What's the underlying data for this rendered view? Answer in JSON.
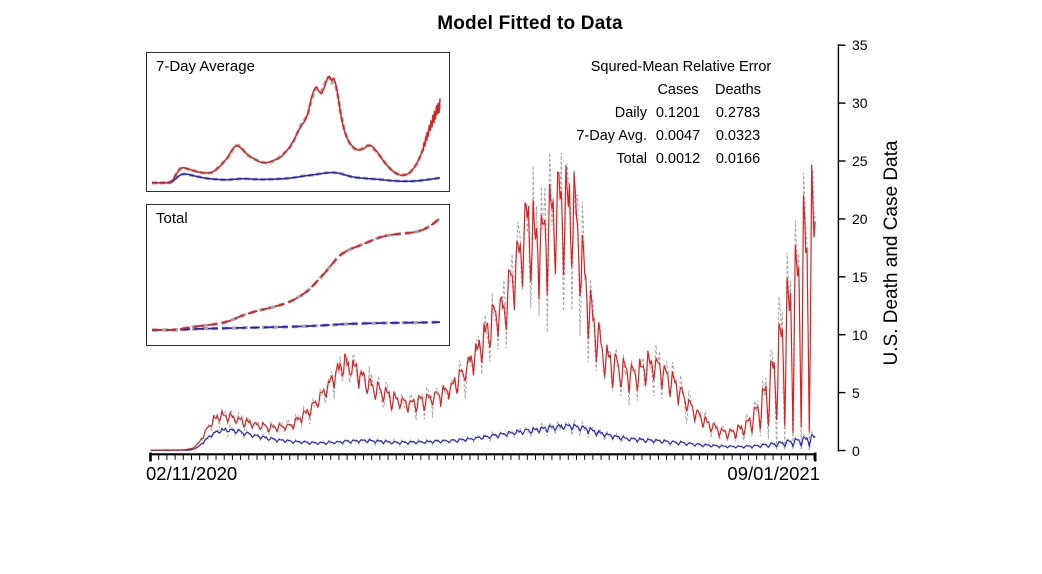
{
  "title": "Model Fitted to Data",
  "error_table": {
    "title": "Squred-Mean Relative Error",
    "col_headers": [
      "Cases",
      "Deaths"
    ],
    "rows": [
      {
        "label": "Daily",
        "cases": "0.1201",
        "deaths": "0.2783"
      },
      {
        "label": "7-Day Avg.",
        "cases": "0.0047",
        "deaths": "0.0323"
      },
      {
        "label": "Total",
        "cases": "0.0012",
        "deaths": "0.0166"
      }
    ]
  },
  "axes": {
    "x_tick_labels": [
      "02/11/2020",
      "09/01/2021"
    ],
    "y_axis_label": "U.S. Death and Case Data",
    "y_ticks": [
      0,
      5,
      10,
      15,
      20,
      25,
      30,
      35
    ]
  },
  "insets": {
    "seven_day_label": "7-Day Average",
    "total_label": "Total"
  },
  "colors": {
    "cases": "#dd1f1f",
    "deaths": "#2424cc",
    "data": "#a6a6a6",
    "axis": "#000000"
  },
  "chart_data": [
    {
      "id": "main-daily",
      "type": "line",
      "title": "Model Fitted to Data",
      "ylabel": "U.S. Death and Case Data",
      "ylim": [
        0,
        35
      ],
      "x_start": "02/11/2020",
      "x_end": "09/01/2021",
      "days": 568,
      "x_tick_interval_days": 7,
      "weekly_oscillation": {
        "period_days": 7,
        "phase": 2.5,
        "w1": 0.72,
        "w2": 0.42,
        "w2_phase": 0.9
      },
      "series": [
        {
          "name": "cases-data",
          "role": "data",
          "color": "data",
          "dashed": true,
          "base": "cases-model",
          "amp_mult": 1.42,
          "jitter": 0.13,
          "seed": 7,
          "spikes": [
            [
              338,
              0.15
            ],
            [
              544,
              0.1
            ],
            [
              558,
              0.12
            ]
          ]
        },
        {
          "name": "deaths-data",
          "role": "data",
          "color": "data",
          "dashed": true,
          "base": "deaths-model",
          "amp_mult": 1.5,
          "jitter": 0.16,
          "seed": 19,
          "spikes": []
        },
        {
          "name": "deaths-model",
          "role": "model",
          "color": "deaths",
          "dashed": false,
          "jitter": 0.04,
          "seed": 23,
          "trend": [
            [
              0,
              0.01
            ],
            [
              34,
              0.03
            ],
            [
              40,
              0.25
            ],
            [
              46,
              0.8
            ],
            [
              52,
              1.35
            ],
            [
              58,
              1.7
            ],
            [
              64,
              1.8
            ],
            [
              72,
              1.7
            ],
            [
              80,
              1.5
            ],
            [
              90,
              1.25
            ],
            [
              100,
              1.05
            ],
            [
              110,
              0.9
            ],
            [
              120,
              0.78
            ],
            [
              130,
              0.7
            ],
            [
              140,
              0.65
            ],
            [
              150,
              0.66
            ],
            [
              160,
              0.72
            ],
            [
              170,
              0.8
            ],
            [
              180,
              0.85
            ],
            [
              190,
              0.82
            ],
            [
              200,
              0.76
            ],
            [
              210,
              0.7
            ],
            [
              220,
              0.7
            ],
            [
              230,
              0.73
            ],
            [
              240,
              0.76
            ],
            [
              250,
              0.8
            ],
            [
              260,
              0.86
            ],
            [
              270,
              0.95
            ],
            [
              280,
              1.08
            ],
            [
              290,
              1.22
            ],
            [
              300,
              1.38
            ],
            [
              310,
              1.52
            ],
            [
              320,
              1.66
            ],
            [
              330,
              1.8
            ],
            [
              340,
              1.95
            ],
            [
              350,
              2.05
            ],
            [
              358,
              2.1
            ],
            [
              366,
              2.0
            ],
            [
              374,
              1.8
            ],
            [
              382,
              1.55
            ],
            [
              392,
              1.3
            ],
            [
              402,
              1.1
            ],
            [
              412,
              0.98
            ],
            [
              422,
              0.9
            ],
            [
              432,
              0.84
            ],
            [
              442,
              0.76
            ],
            [
              452,
              0.66
            ],
            [
              462,
              0.56
            ],
            [
              472,
              0.47
            ],
            [
              482,
              0.4
            ],
            [
              492,
              0.35
            ],
            [
              502,
              0.33
            ],
            [
              512,
              0.36
            ],
            [
              522,
              0.42
            ],
            [
              532,
              0.52
            ],
            [
              542,
              0.64
            ],
            [
              552,
              0.78
            ],
            [
              560,
              0.9
            ],
            [
              568,
              1.05
            ]
          ],
          "osc_amp": [
            [
              0,
              0.08
            ],
            [
              60,
              0.1
            ],
            [
              120,
              0.16
            ],
            [
              200,
              0.18
            ],
            [
              280,
              0.14
            ],
            [
              340,
              0.12
            ],
            [
              400,
              0.16
            ],
            [
              460,
              0.22
            ],
            [
              510,
              0.3
            ],
            [
              545,
              0.42
            ],
            [
              568,
              0.55
            ]
          ]
        },
        {
          "name": "cases-model",
          "role": "model",
          "color": "cases",
          "dashed": false,
          "jitter": 0.05,
          "seed": 11,
          "trend": [
            [
              0,
              0.03
            ],
            [
              28,
              0.05
            ],
            [
              36,
              0.18
            ],
            [
              42,
              0.7
            ],
            [
              48,
              1.8
            ],
            [
              55,
              2.8
            ],
            [
              62,
              3.05
            ],
            [
              70,
              2.85
            ],
            [
              80,
              2.5
            ],
            [
              90,
              2.2
            ],
            [
              100,
              2.0
            ],
            [
              110,
              2.0
            ],
            [
              118,
              2.1
            ],
            [
              126,
              2.6
            ],
            [
              134,
              3.3
            ],
            [
              142,
              4.2
            ],
            [
              150,
              5.2
            ],
            [
              158,
              6.6
            ],
            [
              164,
              7.3
            ],
            [
              170,
              7.35
            ],
            [
              176,
              6.9
            ],
            [
              184,
              6.0
            ],
            [
              192,
              5.4
            ],
            [
              200,
              4.9
            ],
            [
              208,
              4.4
            ],
            [
              216,
              4.05
            ],
            [
              224,
              4.0
            ],
            [
              232,
              4.2
            ],
            [
              240,
              4.5
            ],
            [
              248,
              4.8
            ],
            [
              256,
              5.3
            ],
            [
              264,
              6.2
            ],
            [
              272,
              7.2
            ],
            [
              280,
              8.6
            ],
            [
              288,
              10.2
            ],
            [
              296,
              11.6
            ],
            [
              302,
              12.4
            ],
            [
              308,
              14.0
            ],
            [
              314,
              16.8
            ],
            [
              320,
              18.6
            ],
            [
              324,
              19.2
            ],
            [
              328,
              18.4
            ],
            [
              334,
              17.6
            ],
            [
              340,
              19.0
            ],
            [
              346,
              20.8
            ],
            [
              350,
              21.3
            ],
            [
              354,
              20.2
            ],
            [
              358,
              21.0
            ],
            [
              362,
              19.8
            ],
            [
              366,
              17.8
            ],
            [
              372,
              13.8
            ],
            [
              378,
              10.8
            ],
            [
              384,
              9.0
            ],
            [
              392,
              7.6
            ],
            [
              400,
              6.9
            ],
            [
              408,
              6.5
            ],
            [
              416,
              6.7
            ],
            [
              424,
              7.3
            ],
            [
              430,
              7.5
            ],
            [
              436,
              7.1
            ],
            [
              444,
              6.2
            ],
            [
              452,
              5.0
            ],
            [
              460,
              3.9
            ],
            [
              468,
              3.0
            ],
            [
              476,
              2.3
            ],
            [
              484,
              1.8
            ],
            [
              492,
              1.5
            ],
            [
              500,
              1.6
            ],
            [
              508,
              2.0
            ],
            [
              516,
              2.9
            ],
            [
              524,
              4.2
            ],
            [
              532,
              6.0
            ],
            [
              540,
              8.5
            ],
            [
              548,
              11.0
            ],
            [
              556,
              13.0
            ],
            [
              562,
              14.5
            ],
            [
              568,
              15.5
            ]
          ],
          "osc_amp": [
            [
              0,
              0.06
            ],
            [
              40,
              0.1
            ],
            [
              60,
              0.13
            ],
            [
              100,
              0.16
            ],
            [
              160,
              0.13
            ],
            [
              200,
              0.16
            ],
            [
              260,
              0.15
            ],
            [
              300,
              0.16
            ],
            [
              330,
              0.2
            ],
            [
              360,
              0.24
            ],
            [
              390,
              0.22
            ],
            [
              430,
              0.17
            ],
            [
              470,
              0.22
            ],
            [
              500,
              0.3
            ],
            [
              520,
              0.45
            ],
            [
              540,
              0.65
            ],
            [
              555,
              0.8
            ],
            [
              568,
              0.85
            ]
          ]
        }
      ]
    },
    {
      "id": "inset-7day",
      "type": "line",
      "label": "7-Day Average",
      "ymax": 22.5,
      "series": [
        {
          "name": "cases-avg-data",
          "role": "data",
          "color": "data",
          "base": "cases-model"
        },
        {
          "name": "deaths-avg-data",
          "role": "data",
          "color": "data",
          "base": "deaths-model"
        },
        {
          "name": "deaths-avg-model",
          "role": "model",
          "color": "deaths",
          "base": "deaths-model"
        },
        {
          "name": "cases-avg-model",
          "role": "model",
          "color": "cases",
          "base": "cases-model",
          "end_jag": true
        }
      ]
    },
    {
      "id": "inset-total",
      "type": "line",
      "label": "Total",
      "cumulative": true,
      "deaths_scale": 0.5,
      "series": [
        {
          "name": "cases-total-data",
          "role": "data",
          "color": "data",
          "base": "cases-model"
        },
        {
          "name": "deaths-total-data",
          "role": "data",
          "color": "data",
          "base": "deaths-model"
        },
        {
          "name": "deaths-total-model",
          "role": "model",
          "color": "deaths",
          "base": "deaths-model"
        },
        {
          "name": "cases-total-model",
          "role": "model",
          "color": "cases",
          "base": "cases-model"
        }
      ]
    }
  ]
}
